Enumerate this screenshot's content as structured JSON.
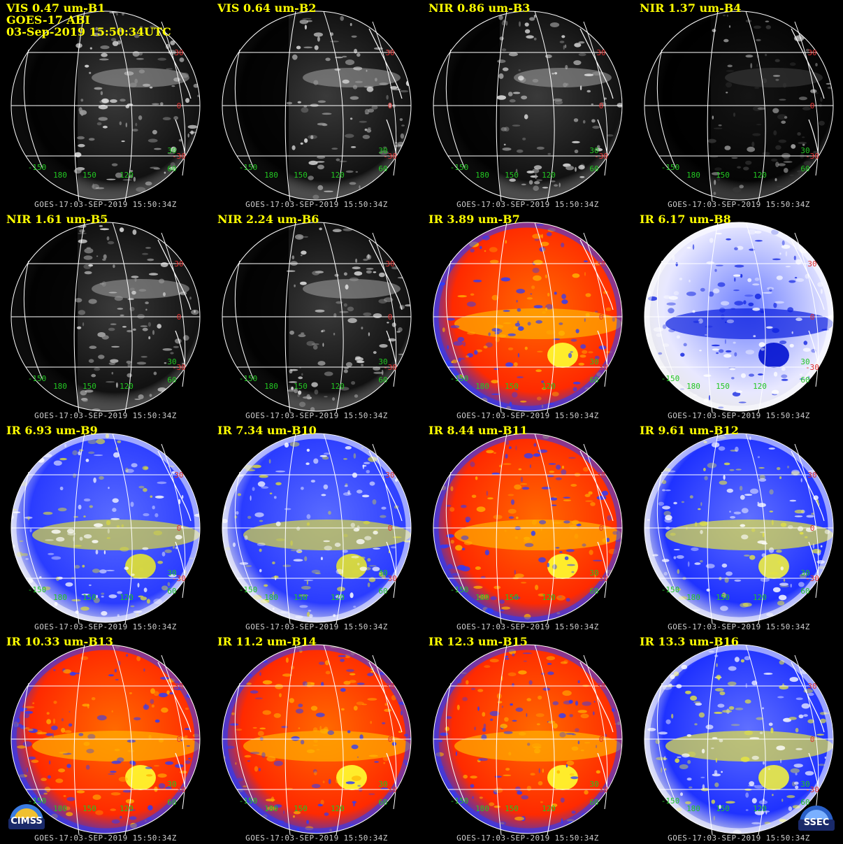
{
  "header_lines": [
    "GOES-17 ABI",
    "03-Sep-2019 15:50:34UTC"
  ],
  "footer": "GOES-17:03-SEP-2019 15:50:34Z",
  "lat_labels": [
    "30",
    "0",
    "-30"
  ],
  "lon_labels": [
    "-150",
    "180",
    "150",
    "120",
    "60"
  ],
  "extra_lat_label": "30",
  "logos": [
    "CIMSS",
    "SSEC"
  ],
  "colors": {
    "title": "#ffff00",
    "footer": "#cfcfcf",
    "lat_label": "#e03030",
    "lon_label": "#22c722",
    "grid": "#ffffff",
    "background": "#000000"
  },
  "panels": [
    {
      "title": "VIS 0.47 um-B1",
      "style": "gray"
    },
    {
      "title": "VIS 0.64 um-B2",
      "style": "gray"
    },
    {
      "title": "NIR 0.86 um-B3",
      "style": "gray"
    },
    {
      "title": "NIR 1.37 um-B4",
      "style": "dark"
    },
    {
      "title": "NIR 1.61 um-B5",
      "style": "gray"
    },
    {
      "title": "NIR 2.24 um-B6",
      "style": "gray"
    },
    {
      "title": "IR 3.89 um-B7",
      "style": "red"
    },
    {
      "title": "IR 6.17 um-B8",
      "style": "wv-blue"
    },
    {
      "title": "IR 6.93 um-B9",
      "style": "wv-yellow"
    },
    {
      "title": "IR 7.34 um-B10",
      "style": "wv-yellow"
    },
    {
      "title": "IR 8.44 um-B11",
      "style": "red"
    },
    {
      "title": "IR 9.61 um-B12",
      "style": "yellow-blue"
    },
    {
      "title": "IR 10.33 um-B13",
      "style": "red"
    },
    {
      "title": "IR 11.2 um-B14",
      "style": "red"
    },
    {
      "title": "IR 12.3 um-B15",
      "style": "red"
    },
    {
      "title": "IR 13.3 um-B16",
      "style": "yellow-blue"
    }
  ]
}
